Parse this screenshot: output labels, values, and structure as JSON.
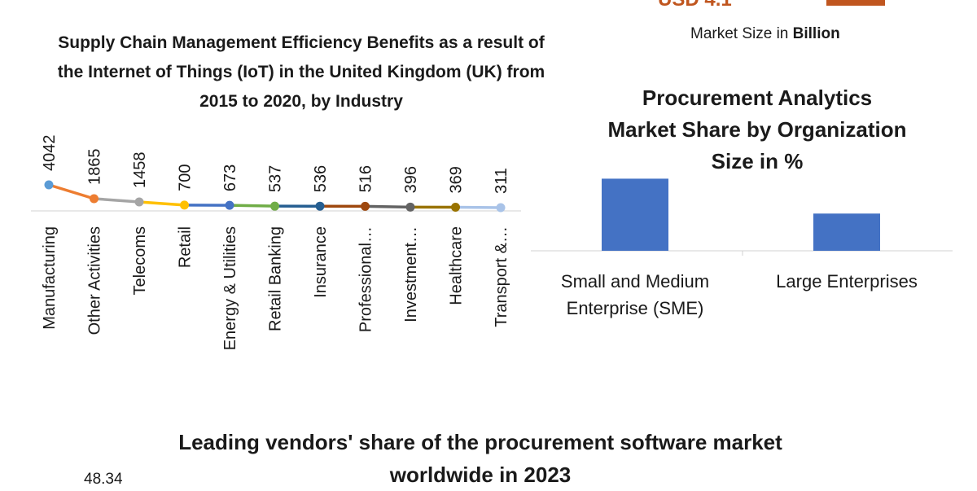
{
  "header_right": {
    "market_size_prefix": "Market Size in ",
    "market_size_bold": "Billion"
  },
  "chart_data": [
    {
      "type": "line",
      "title_lines": [
        "Supply Chain Management Efficiency Benefits as a result of",
        "the Internet of Things (IoT) in the United Kingdom (UK) from",
        "2015 to 2020, by Industry"
      ],
      "categories": [
        "Manufacturing",
        "Other Activities",
        "Telecoms",
        "Retail",
        "Energy & Utilities",
        "Retail Banking",
        "Insurance",
        "Professional…",
        "Investment…",
        "Healthcare",
        "Transport &…"
      ],
      "values": [
        4042,
        1865,
        1458,
        700,
        673,
        537,
        536,
        516,
        396,
        369,
        311
      ],
      "point_colors": [
        "#5b9bd5",
        "#ed7d31",
        "#a5a5a5",
        "#ffc000",
        "#4472c4",
        "#70ad47",
        "#255e91",
        "#9e480e",
        "#636363",
        "#997300",
        "#a9c3e8"
      ]
    },
    {
      "type": "bar",
      "title_lines": [
        "Procurement Analytics",
        "Market Share by Organization",
        "Size in %"
      ],
      "categories": [
        [
          "Small and Medium",
          "Enterprise (SME)"
        ],
        [
          "Large Enterprises"
        ]
      ],
      "values": [
        62,
        32
      ],
      "ylim": [
        0,
        70
      ],
      "color": "#4472c4"
    },
    {
      "type": "bar",
      "title_lines": [
        "Leading vendors' share of the procurement software market",
        "worldwide in 2023"
      ],
      "data_labels": [
        "48.34"
      ]
    }
  ]
}
